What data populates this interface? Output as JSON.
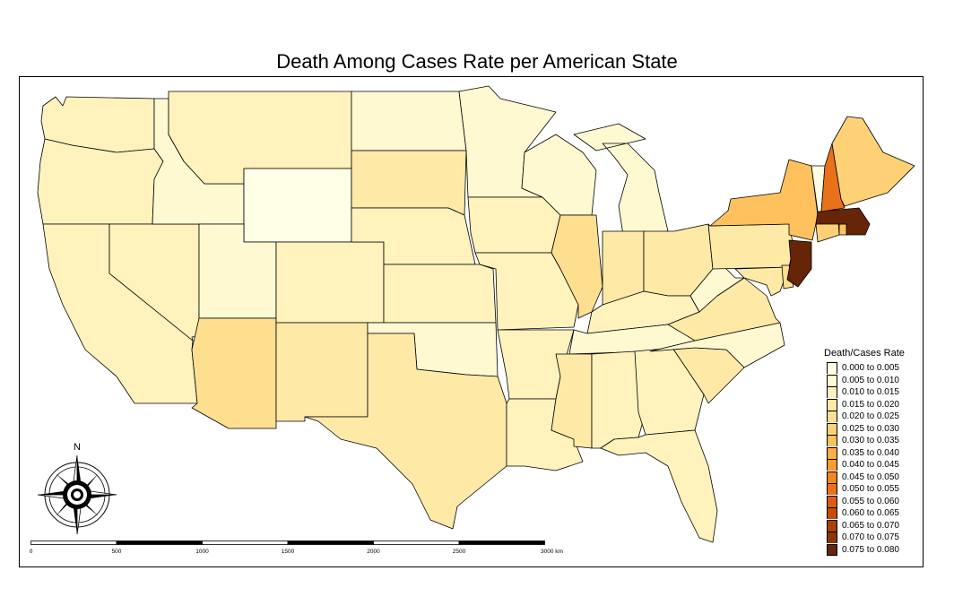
{
  "title": "Death Among Cases Rate per American State",
  "legend": {
    "title": "Death/Cases Rate",
    "items": [
      {
        "label": "0.000 to 0.005",
        "color": "#ffffe5"
      },
      {
        "label": "0.005 to 0.010",
        "color": "#fff9d2"
      },
      {
        "label": "0.010 to 0.015",
        "color": "#fff2bd"
      },
      {
        "label": "0.015 to 0.020",
        "color": "#fee9a6"
      },
      {
        "label": "0.020 to 0.025",
        "color": "#fedf8f"
      },
      {
        "label": "0.025 to 0.030",
        "color": "#fed177"
      },
      {
        "label": "0.030 to 0.035",
        "color": "#fec15e"
      },
      {
        "label": "0.035 to 0.040",
        "color": "#feae46"
      },
      {
        "label": "0.040 to 0.045",
        "color": "#fb9a33"
      },
      {
        "label": "0.045 to 0.050",
        "color": "#f38525"
      },
      {
        "label": "0.050 to 0.055",
        "color": "#e8711a"
      },
      {
        "label": "0.055 to 0.060",
        "color": "#da5e0f"
      },
      {
        "label": "0.060 to 0.065",
        "color": "#c44e06"
      },
      {
        "label": "0.065 to 0.070",
        "color": "#ab4104"
      },
      {
        "label": "0.070 to 0.075",
        "color": "#8e3704"
      },
      {
        "label": "0.075 to 0.080",
        "color": "#662506"
      }
    ]
  },
  "scale_bar": {
    "labels": [
      "0",
      "500",
      "1000",
      "1500",
      "2000",
      "2500",
      "3000 km"
    ]
  },
  "north_arrow": {
    "label": "N"
  },
  "states": [
    {
      "name": "Washington",
      "color": "#fff2bd"
    },
    {
      "name": "Oregon",
      "color": "#fff2bd"
    },
    {
      "name": "California",
      "color": "#fff2bd"
    },
    {
      "name": "Nevada",
      "color": "#fff2bd"
    },
    {
      "name": "Idaho",
      "color": "#fff9d2"
    },
    {
      "name": "Montana",
      "color": "#fff2bd"
    },
    {
      "name": "Wyoming",
      "color": "#ffffe5"
    },
    {
      "name": "Utah",
      "color": "#fff9d2"
    },
    {
      "name": "Arizona",
      "color": "#fedf8f"
    },
    {
      "name": "Colorado",
      "color": "#fff2bd"
    },
    {
      "name": "New Mexico",
      "color": "#fee9a6"
    },
    {
      "name": "North Dakota",
      "color": "#fff9d2"
    },
    {
      "name": "South Dakota",
      "color": "#fee9a6"
    },
    {
      "name": "Nebraska",
      "color": "#fff2bd"
    },
    {
      "name": "Kansas",
      "color": "#fff2bd"
    },
    {
      "name": "Oklahoma",
      "color": "#fff9d2"
    },
    {
      "name": "Texas",
      "color": "#fee9a6"
    },
    {
      "name": "Minnesota",
      "color": "#fff9d2"
    },
    {
      "name": "Iowa",
      "color": "#fff2bd"
    },
    {
      "name": "Missouri",
      "color": "#fff2bd"
    },
    {
      "name": "Arkansas",
      "color": "#fff2bd"
    },
    {
      "name": "Louisiana",
      "color": "#fff2bd"
    },
    {
      "name": "Wisconsin",
      "color": "#fff9d2"
    },
    {
      "name": "Illinois",
      "color": "#fedf8f"
    },
    {
      "name": "Michigan",
      "color": "#fff9d2"
    },
    {
      "name": "Indiana",
      "color": "#fee9a6"
    },
    {
      "name": "Ohio",
      "color": "#fee9a6"
    },
    {
      "name": "Kentucky",
      "color": "#fff2bd"
    },
    {
      "name": "Tennessee",
      "color": "#fff9d2"
    },
    {
      "name": "Mississippi",
      "color": "#fee9a6"
    },
    {
      "name": "Alabama",
      "color": "#fff2bd"
    },
    {
      "name": "Georgia",
      "color": "#fff2bd"
    },
    {
      "name": "Florida",
      "color": "#fff2bd"
    },
    {
      "name": "South Carolina",
      "color": "#fee9a6"
    },
    {
      "name": "North Carolina",
      "color": "#fff9d2"
    },
    {
      "name": "Virginia",
      "color": "#fee9a6"
    },
    {
      "name": "West Virginia",
      "color": "#fff9d2"
    },
    {
      "name": "Pennsylvania",
      "color": "#fee9a6"
    },
    {
      "name": "Maryland",
      "color": "#fee9a6"
    },
    {
      "name": "Delaware",
      "color": "#fedf8f"
    },
    {
      "name": "New Jersey",
      "color": "#662506"
    },
    {
      "name": "New York",
      "color": "#fec15e"
    },
    {
      "name": "Connecticut",
      "color": "#fed177"
    },
    {
      "name": "Rhode Island",
      "color": "#fec15e"
    },
    {
      "name": "Massachusetts",
      "color": "#662506"
    },
    {
      "name": "Vermont",
      "color": "#ffffe5"
    },
    {
      "name": "New Hampshire",
      "color": "#e8711a"
    },
    {
      "name": "Maine",
      "color": "#fed177"
    }
  ]
}
